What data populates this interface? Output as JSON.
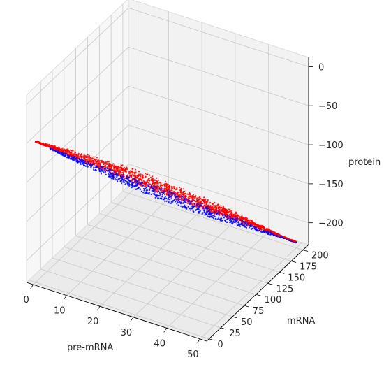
{
  "chart_data": {
    "type": "scatter",
    "projection": "3d",
    "xlabel": "pre-mRNA",
    "ylabel": "mRNA",
    "zlabel": "protein",
    "xlim": [
      -2,
      52
    ],
    "ylim": [
      -5,
      212
    ],
    "zlim": [
      -228,
      12
    ],
    "xticks": [
      0,
      10,
      20,
      30,
      40,
      50
    ],
    "yticks": [
      0,
      25,
      50,
      75,
      100,
      125,
      150,
      175,
      200
    ],
    "zticks": [
      0,
      -50,
      -100,
      -150,
      -200
    ],
    "xtick_labels": [
      "0",
      "10",
      "20",
      "30",
      "40",
      "50"
    ],
    "ytick_labels": [
      "0",
      "25",
      "50",
      "75",
      "100",
      "125",
      "150",
      "175",
      "200"
    ],
    "ztick_labels": [
      "0",
      "−50",
      "−100",
      "−150",
      "−200"
    ],
    "grid": true,
    "legend": "none",
    "colors": {
      "pane": "#f2f2f2",
      "grid": "#c8c8c8",
      "axis_line": "#000000",
      "series_a": "#ff0000",
      "series_b": "#0000ff"
    },
    "series": [
      {
        "color": "#ff0000",
        "description_points": "dense cloud along trajectory from (0,0,-48) to (50,200,-221)",
        "x_range": [
          0,
          50
        ],
        "y_range": [
          0,
          200
        ],
        "z_range": [
          -221,
          -48
        ]
      },
      {
        "color": "#0000ff",
        "description_points": "points concentrated on lower edge of the same trajectory",
        "x_range": [
          3,
          50
        ],
        "y_range": [
          10,
          200
        ],
        "z_range": [
          -221,
          -58
        ]
      }
    ]
  }
}
